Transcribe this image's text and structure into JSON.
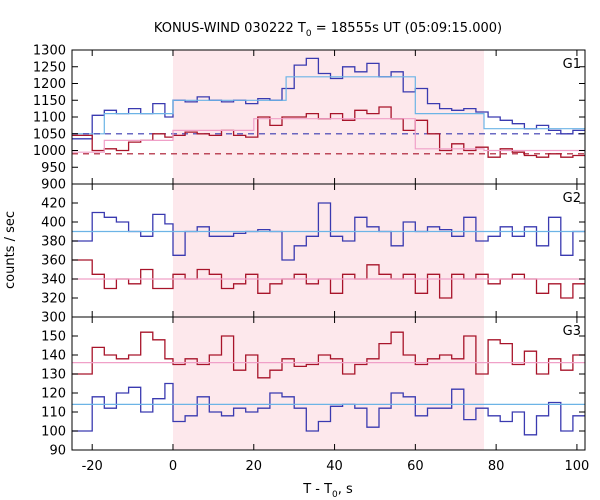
{
  "chart_data": {
    "type": "line",
    "title_text": "KONUS-WIND 030222 T",
    "title_sub": "0",
    "title_rest": " = 18555s UT (05:09:15.000)",
    "xlabel_text": "T - T",
    "xlabel_sub": "0",
    "xlabel_rest": ", s",
    "ylabel": "counts / sec",
    "xlim": [
      -25,
      102
    ],
    "xticks": [
      -20,
      0,
      20,
      40,
      60,
      80,
      100
    ],
    "shaded_interval": [
      0,
      77
    ],
    "colors": {
      "blue": "#3a3ab0",
      "lightblue": "#6cb4e6",
      "red": "#a8142a",
      "pink": "#f0a0c8",
      "shade": "#fde8ec"
    },
    "panels": [
      {
        "name": "G1",
        "ylim": [
          900,
          1300
        ],
        "yticks": [
          900,
          950,
          1000,
          1050,
          1100,
          1150,
          1200,
          1250,
          1300
        ],
        "bin_edges": [
          -25,
          -20,
          -17,
          -14,
          -11,
          -8,
          -5,
          -2,
          0,
          3,
          6,
          9,
          12,
          15,
          18,
          21,
          24,
          27,
          30,
          33,
          36,
          39,
          42,
          45,
          48,
          51,
          54,
          57,
          60,
          63,
          66,
          69,
          72,
          75,
          78,
          81,
          84,
          87,
          90,
          93,
          96,
          99,
          102
        ],
        "series": [
          {
            "role": "data",
            "color": "blue",
            "values": [
              1035,
              1105,
              1120,
              1110,
              1125,
              1110,
              1140,
              1100,
              1150,
              1145,
              1160,
              1150,
              1145,
              1150,
              1140,
              1155,
              1150,
              1185,
              1255,
              1275,
              1230,
              1215,
              1250,
              1235,
              1260,
              1220,
              1235,
              1175,
              1185,
              1140,
              1125,
              1120,
              1125,
              1115,
              1100,
              1090,
              1080,
              1065,
              1075,
              1060,
              1050,
              1060
            ]
          },
          {
            "role": "fit",
            "color": "lightblue",
            "edges": [
              -25,
              -17,
              0,
              28,
              60,
              77,
              102
            ],
            "values": [
              1050,
              1110,
              1150,
              1220,
              1110,
              1065
            ]
          },
          {
            "role": "background",
            "color": "blue",
            "dashed": true,
            "edges": [
              -25,
              102
            ],
            "values": [
              1050
            ]
          },
          {
            "role": "data",
            "color": "red",
            "values": [
              1045,
              1000,
              1005,
              1000,
              1025,
              1030,
              1050,
              1040,
              1045,
              1055,
              1050,
              1045,
              1060,
              1045,
              1040,
              1100,
              1075,
              1100,
              1100,
              1110,
              1095,
              1110,
              1090,
              1120,
              1110,
              1130,
              1095,
              1060,
              1090,
              1050,
              1000,
              1020,
              1000,
              1010,
              980,
              1005,
              995,
              985,
              980,
              990,
              980,
              985
            ]
          },
          {
            "role": "fit",
            "color": "pink",
            "edges": [
              -25,
              -17,
              0,
              20,
              60,
              77,
              102
            ],
            "values": [
              995,
              1030,
              1060,
              1095,
              1005,
              1000
            ]
          },
          {
            "role": "background",
            "color": "red",
            "dashed": true,
            "edges": [
              -25,
              102
            ],
            "values": [
              990
            ]
          }
        ]
      },
      {
        "name": "G2",
        "ylim": [
          300,
          440
        ],
        "yticks": [
          300,
          320,
          340,
          360,
          380,
          400,
          420
        ],
        "bin_edges": [
          -25,
          -20,
          -17,
          -14,
          -11,
          -8,
          -5,
          -2,
          0,
          3,
          6,
          9,
          12,
          15,
          18,
          21,
          24,
          27,
          30,
          33,
          36,
          39,
          42,
          45,
          48,
          51,
          54,
          57,
          60,
          63,
          66,
          69,
          72,
          75,
          78,
          81,
          84,
          87,
          90,
          93,
          96,
          99,
          102
        ],
        "series": [
          {
            "role": "data",
            "color": "blue",
            "values": [
              380,
              410,
              405,
              400,
              390,
              385,
              408,
              398,
              365,
              390,
              395,
              385,
              385,
              388,
              390,
              392,
              390,
              360,
              375,
              385,
              420,
              385,
              380,
              405,
              395,
              390,
              375,
              400,
              390,
              395,
              392,
              385,
              405,
              380,
              385,
              395,
              385,
              395,
              375,
              405,
              365,
              390
            ]
          },
          {
            "role": "fit",
            "color": "lightblue",
            "edges": [
              -25,
              102
            ],
            "values": [
              390
            ]
          },
          {
            "role": "data",
            "color": "red",
            "values": [
              360,
              345,
              330,
              340,
              335,
              350,
              330,
              330,
              345,
              340,
              350,
              345,
              330,
              335,
              345,
              325,
              335,
              340,
              345,
              335,
              340,
              325,
              345,
              340,
              355,
              345,
              340,
              345,
              325,
              345,
              320,
              345,
              340,
              345,
              335,
              340,
              345,
              340,
              325,
              335,
              320,
              335
            ]
          },
          {
            "role": "fit",
            "color": "pink",
            "edges": [
              -25,
              102
            ],
            "values": [
              340
            ]
          }
        ]
      },
      {
        "name": "G3",
        "ylim": [
          90,
          160
        ],
        "yticks": [
          90,
          100,
          110,
          120,
          130,
          140,
          150
        ],
        "bin_edges": [
          -25,
          -20,
          -17,
          -14,
          -11,
          -8,
          -5,
          -2,
          0,
          3,
          6,
          9,
          12,
          15,
          18,
          21,
          24,
          27,
          30,
          33,
          36,
          39,
          42,
          45,
          48,
          51,
          54,
          57,
          60,
          63,
          66,
          69,
          72,
          75,
          78,
          81,
          84,
          87,
          90,
          93,
          96,
          99,
          102
        ],
        "series": [
          {
            "role": "data",
            "color": "blue",
            "values": [
              100,
              118,
              112,
              120,
              123,
              110,
              117,
              125,
              105,
              108,
              118,
              110,
              108,
              112,
              110,
              112,
              120,
              118,
              112,
              100,
              105,
              113,
              114,
              112,
              102,
              112,
              120,
              118,
              108,
              112,
              112,
              122,
              106,
              112,
              108,
              105,
              110,
              98,
              108,
              115,
              100,
              108
            ]
          },
          {
            "role": "fit",
            "color": "lightblue",
            "edges": [
              -25,
              102
            ],
            "values": [
              114
            ]
          },
          {
            "role": "data",
            "color": "red",
            "values": [
              130,
              144,
              140,
              138,
              140,
              152,
              148,
              138,
              135,
              138,
              135,
              140,
              150,
              132,
              140,
              128,
              132,
              138,
              134,
              135,
              140,
              138,
              130,
              135,
              138,
              146,
              152,
              140,
              135,
              138,
              140,
              138,
              150,
              130,
              148,
              146,
              135,
              142,
              130,
              138,
              132,
              140
            ]
          },
          {
            "role": "fit",
            "color": "pink",
            "edges": [
              -25,
              102
            ],
            "values": [
              136
            ]
          }
        ]
      }
    ]
  }
}
